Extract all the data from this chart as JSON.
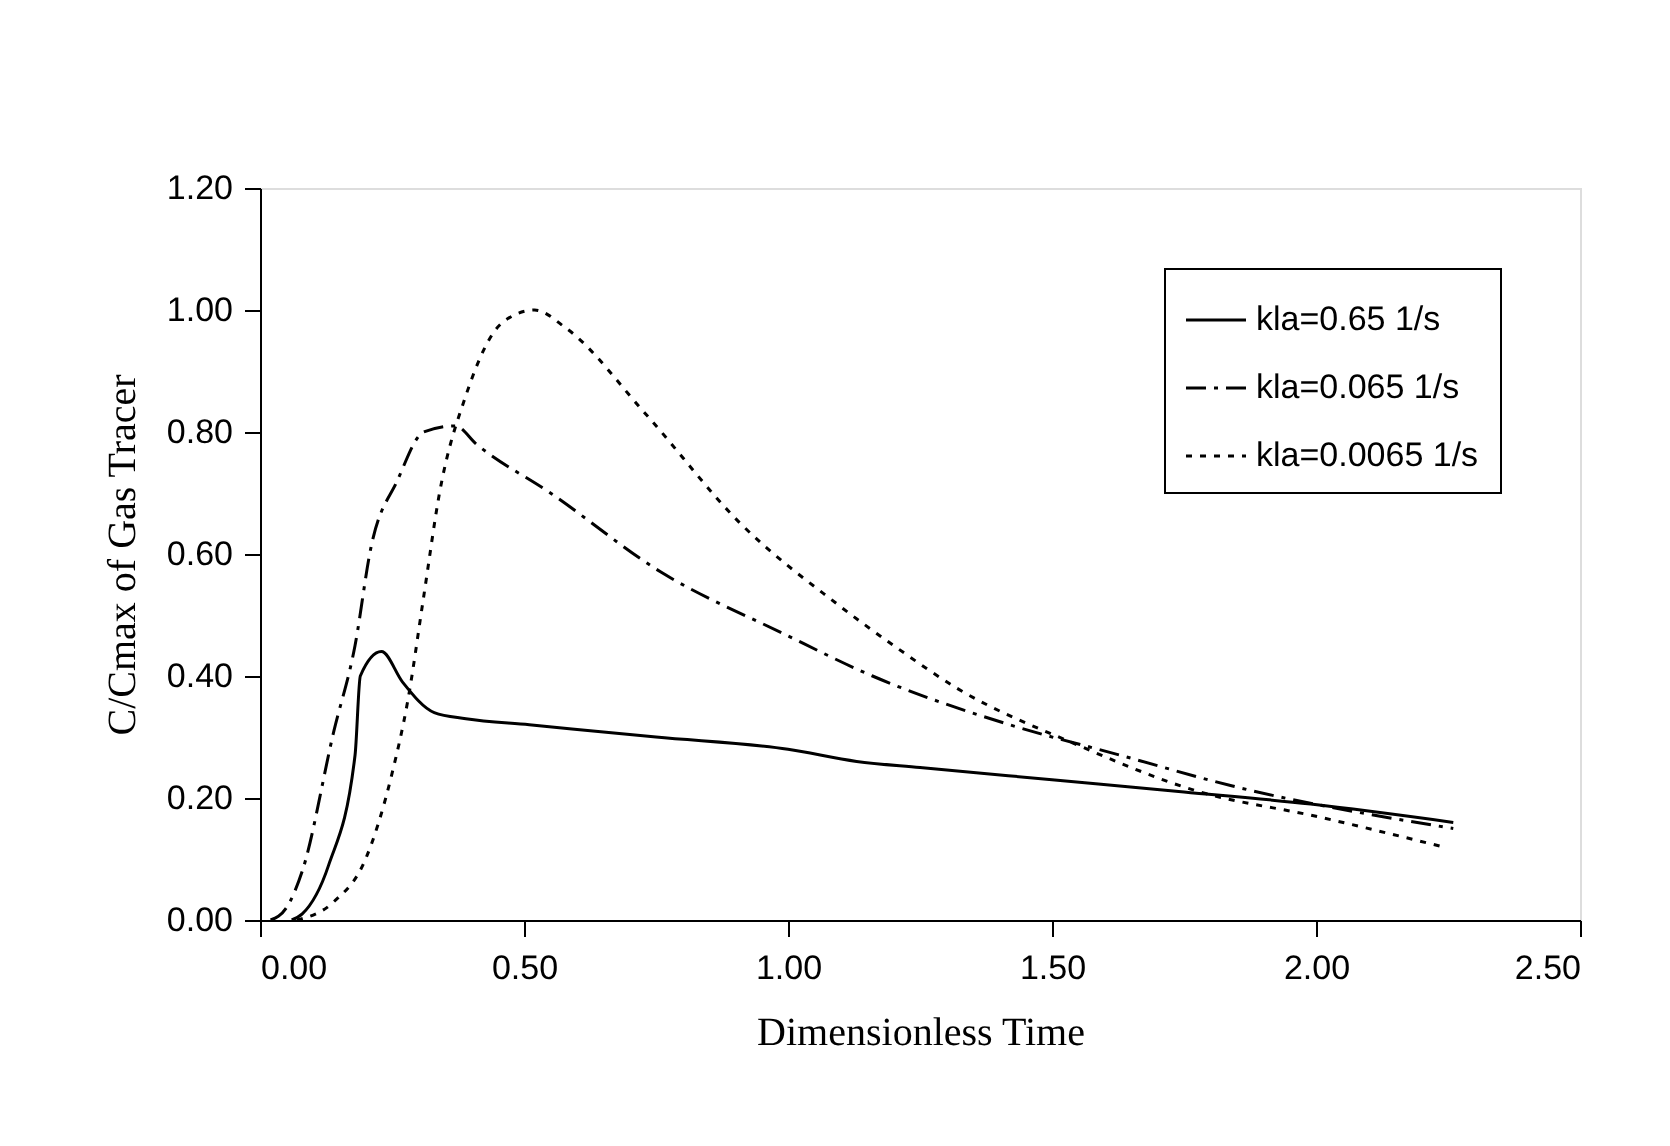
{
  "chart_data": {
    "type": "line",
    "xlabel": "Dimensionless Time",
    "ylabel": "C/Cmax of Gas Tracer",
    "xlim": [
      0,
      2.5
    ],
    "xticks": [
      {
        "value": 0,
        "label": "0.00"
      },
      {
        "value": 0.5,
        "label": "0.50"
      },
      {
        "value": 1,
        "label": "1.00"
      },
      {
        "value": 1.5,
        "label": "1.50"
      },
      {
        "value": 2,
        "label": "2.00"
      },
      {
        "value": 2.5,
        "label": "2.50"
      }
    ],
    "ylim": [
      0,
      1.2
    ],
    "yticks": [
      {
        "value": 0,
        "label": "0.00"
      },
      {
        "value": 0.2,
        "label": "0.20"
      },
      {
        "value": 0.4,
        "label": "0.40"
      },
      {
        "value": 0.6,
        "label": "0.60"
      },
      {
        "value": 0.8,
        "label": "0.80"
      },
      {
        "value": 1,
        "label": "1.00"
      },
      {
        "value": 1.2,
        "label": "1.20"
      }
    ],
    "grid": false,
    "legend": "top right",
    "marker": "none",
    "series": [
      {
        "name": "kla=0.65 1/s",
        "color": "#000000",
        "line_style": "solid",
        "x": [
          0.06,
          0.08,
          0.13,
          0.18,
          0.19,
          0.23,
          0.27,
          0.33,
          0.39,
          0.51,
          0.75,
          1.0,
          1.13,
          1.25,
          1.5,
          1.75,
          1.99,
          2.26
        ],
        "values": [
          0,
          0.01,
          0.09,
          0.27,
          0.4,
          0.44,
          0.39,
          0.34,
          0.33,
          0.32,
          0.3,
          0.28,
          0.26,
          0.25,
          0.23,
          0.21,
          0.19,
          0.16
        ]
      },
      {
        "name": "kla=0.065 1/s",
        "color": "#000000",
        "line_style": "dashdot",
        "x": [
          0.02,
          0.05,
          0.08,
          0.14,
          0.18,
          0.21,
          0.26,
          0.31,
          0.37,
          0.41,
          0.55,
          0.76,
          0.99,
          1.16,
          1.42,
          1.63,
          1.84,
          2.26
        ],
        "values": [
          0,
          0.02,
          0.08,
          0.31,
          0.45,
          0.61,
          0.72,
          0.8,
          0.81,
          0.78,
          0.7,
          0.57,
          0.47,
          0.4,
          0.32,
          0.27,
          0.22,
          0.15
        ]
      },
      {
        "name": "kla=0.0065 1/s",
        "color": "#000000",
        "line_style": "dotted",
        "x": [
          0.07,
          0.14,
          0.2,
          0.25,
          0.28,
          0.31,
          0.34,
          0.39,
          0.46,
          0.52,
          0.58,
          0.73,
          0.91,
          1.09,
          1.2,
          1.32,
          1.54,
          1.78,
          2.0,
          2.24
        ],
        "values": [
          0,
          0.03,
          0.1,
          0.24,
          0.36,
          0.53,
          0.7,
          0.86,
          0.98,
          1.0,
          0.97,
          0.83,
          0.65,
          0.52,
          0.45,
          0.38,
          0.29,
          0.21,
          0.17,
          0.12
        ]
      }
    ]
  }
}
